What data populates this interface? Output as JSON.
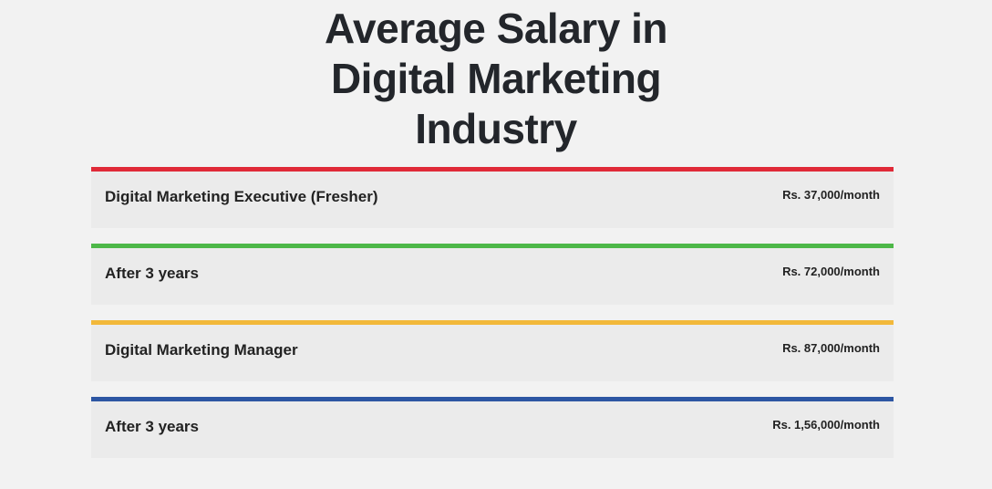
{
  "header": {
    "title": "Average Salary in Digital Marketing Industry"
  },
  "items": [
    {
      "label": "Digital Marketing Executive (Fresher)",
      "salary": "Rs. 37,000/month",
      "color": "#e02a38"
    },
    {
      "label": "After 3 years",
      "salary": "Rs. 72,000/month",
      "color": "#4db848"
    },
    {
      "label": "Digital Marketing Manager",
      "salary": "Rs. 87,000/month",
      "color": "#f2b83a"
    },
    {
      "label": "After 3 years",
      "salary": "Rs. 1,56,000/month",
      "color": "#2d56a3"
    }
  ]
}
